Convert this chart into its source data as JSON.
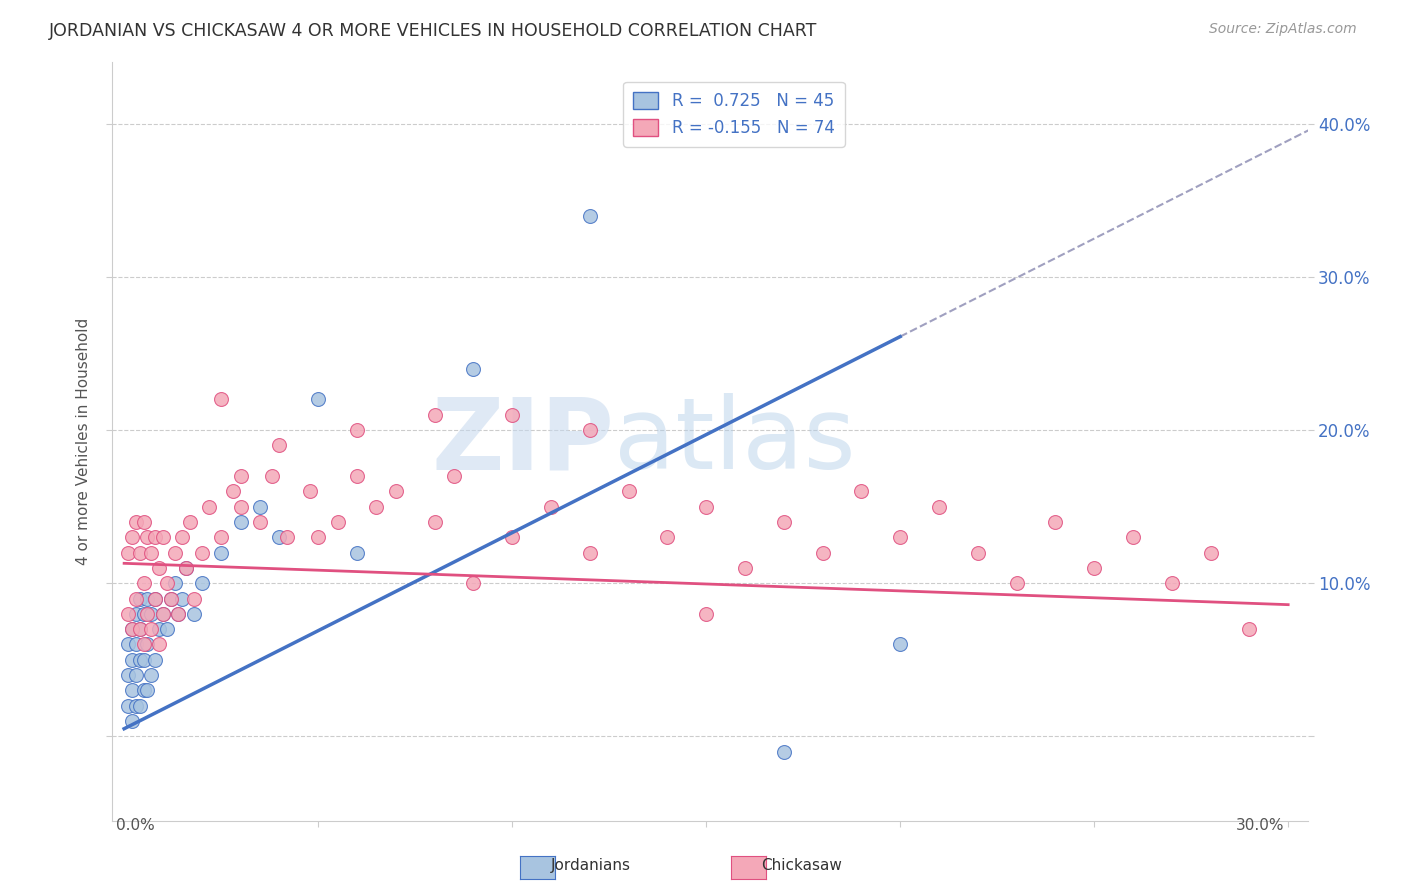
{
  "title": "JORDANIAN VS CHICKASAW 4 OR MORE VEHICLES IN HOUSEHOLD CORRELATION CHART",
  "source": "Source: ZipAtlas.com",
  "ylabel": "4 or more Vehicles in Household",
  "jordanians_color": "#a8c4e0",
  "chickasaw_color": "#f4a8b8",
  "jordan_line_color": "#4472c4",
  "chickasaw_line_color": "#e05080",
  "jordan_slope": 1.28,
  "jordan_intercept": 0.005,
  "chickasaw_slope": -0.09,
  "chickasaw_intercept": 0.113,
  "xmin": 0.0,
  "xmax": 0.3,
  "ymin": -0.055,
  "ymax": 0.44,
  "jordanians_x": [
    0.001,
    0.001,
    0.001,
    0.002,
    0.002,
    0.002,
    0.002,
    0.003,
    0.003,
    0.003,
    0.003,
    0.004,
    0.004,
    0.004,
    0.004,
    0.005,
    0.005,
    0.005,
    0.006,
    0.006,
    0.006,
    0.007,
    0.007,
    0.008,
    0.008,
    0.009,
    0.01,
    0.011,
    0.012,
    0.013,
    0.014,
    0.015,
    0.016,
    0.018,
    0.02,
    0.025,
    0.03,
    0.035,
    0.04,
    0.05,
    0.06,
    0.09,
    0.12,
    0.17,
    0.2
  ],
  "jordanians_y": [
    0.02,
    0.04,
    0.06,
    0.01,
    0.03,
    0.05,
    0.07,
    0.02,
    0.04,
    0.06,
    0.08,
    0.02,
    0.05,
    0.07,
    0.09,
    0.03,
    0.05,
    0.08,
    0.03,
    0.06,
    0.09,
    0.04,
    0.08,
    0.05,
    0.09,
    0.07,
    0.08,
    0.07,
    0.09,
    0.1,
    0.08,
    0.09,
    0.11,
    0.08,
    0.1,
    0.12,
    0.14,
    0.15,
    0.13,
    0.22,
    0.12,
    0.24,
    0.34,
    -0.01,
    0.06
  ],
  "chickasaw_x": [
    0.001,
    0.001,
    0.002,
    0.002,
    0.003,
    0.003,
    0.004,
    0.004,
    0.005,
    0.005,
    0.005,
    0.006,
    0.006,
    0.007,
    0.007,
    0.008,
    0.008,
    0.009,
    0.009,
    0.01,
    0.01,
    0.011,
    0.012,
    0.013,
    0.014,
    0.015,
    0.016,
    0.017,
    0.018,
    0.02,
    0.022,
    0.025,
    0.028,
    0.03,
    0.035,
    0.038,
    0.042,
    0.048,
    0.055,
    0.06,
    0.065,
    0.07,
    0.08,
    0.085,
    0.09,
    0.1,
    0.11,
    0.12,
    0.13,
    0.14,
    0.15,
    0.16,
    0.17,
    0.18,
    0.19,
    0.2,
    0.21,
    0.22,
    0.23,
    0.24,
    0.25,
    0.26,
    0.27,
    0.28,
    0.025,
    0.03,
    0.04,
    0.05,
    0.06,
    0.08,
    0.1,
    0.12,
    0.15,
    0.29
  ],
  "chickasaw_y": [
    0.08,
    0.12,
    0.07,
    0.13,
    0.09,
    0.14,
    0.07,
    0.12,
    0.06,
    0.1,
    0.14,
    0.08,
    0.13,
    0.07,
    0.12,
    0.09,
    0.13,
    0.06,
    0.11,
    0.08,
    0.13,
    0.1,
    0.09,
    0.12,
    0.08,
    0.13,
    0.11,
    0.14,
    0.09,
    0.12,
    0.15,
    0.13,
    0.16,
    0.15,
    0.14,
    0.17,
    0.13,
    0.16,
    0.14,
    0.17,
    0.15,
    0.16,
    0.14,
    0.17,
    0.1,
    0.13,
    0.15,
    0.12,
    0.16,
    0.13,
    0.15,
    0.11,
    0.14,
    0.12,
    0.16,
    0.13,
    0.15,
    0.12,
    0.1,
    0.14,
    0.11,
    0.13,
    0.1,
    0.12,
    0.22,
    0.17,
    0.19,
    0.13,
    0.2,
    0.21,
    0.21,
    0.2,
    0.08,
    0.07
  ]
}
